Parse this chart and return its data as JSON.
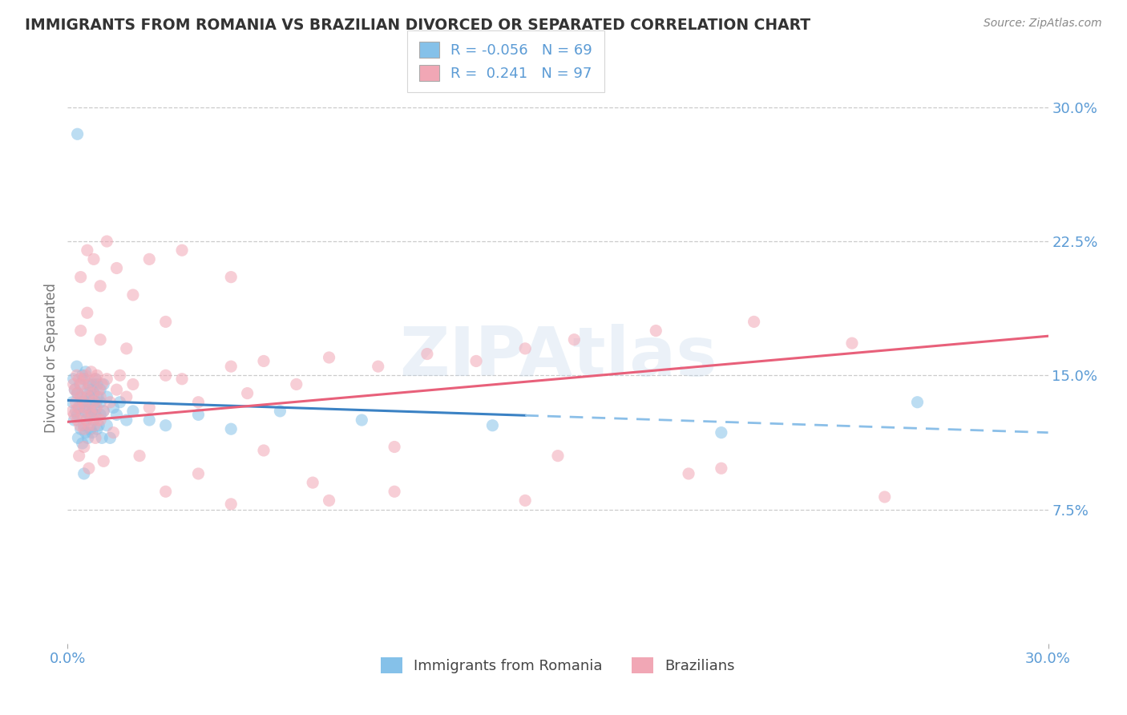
{
  "title": "IMMIGRANTS FROM ROMANIA VS BRAZILIAN DIVORCED OR SEPARATED CORRELATION CHART",
  "source": "Source: ZipAtlas.com",
  "ylabel": "Divorced or Separated",
  "xlim": [
    0.0,
    30.0
  ],
  "ylim": [
    0.0,
    32.0
  ],
  "yticks": [
    7.5,
    15.0,
    22.5,
    30.0
  ],
  "ytick_labels": [
    "7.5%",
    "15.0%",
    "22.5%",
    "30.0%"
  ],
  "xticks": [
    0.0,
    30.0
  ],
  "xtick_labels": [
    "0.0%",
    "30.0%"
  ],
  "grid_color": "#cccccc",
  "background_color": "#ffffff",
  "blue_color": "#85C1E9",
  "pink_color": "#F1A7B5",
  "blue_line_solid_color": "#3B82C4",
  "blue_line_dash_color": "#8BBFE8",
  "pink_line_color": "#E8607A",
  "R_blue": -0.056,
  "N_blue": 69,
  "R_pink": 0.241,
  "N_pink": 97,
  "legend_label_blue": "Immigrants from Romania",
  "legend_label_pink": "Brazilians",
  "watermark": "ZIPAtlas",
  "title_color": "#333333",
  "axis_label_color": "#5B9BD5",
  "blue_line_start_y": 13.6,
  "blue_line_end_y": 11.8,
  "pink_line_start_y": 12.4,
  "pink_line_end_y": 17.2,
  "blue_solid_x_end": 14.0,
  "blue_scatter_x": [
    0.15,
    0.18,
    0.2,
    0.22,
    0.25,
    0.28,
    0.3,
    0.3,
    0.32,
    0.35,
    0.38,
    0.4,
    0.42,
    0.45,
    0.45,
    0.48,
    0.5,
    0.5,
    0.52,
    0.55,
    0.55,
    0.58,
    0.6,
    0.6,
    0.62,
    0.65,
    0.65,
    0.68,
    0.7,
    0.7,
    0.72,
    0.75,
    0.75,
    0.78,
    0.8,
    0.8,
    0.82,
    0.85,
    0.85,
    0.88,
    0.9,
    0.9,
    0.92,
    0.95,
    1.0,
    1.0,
    1.0,
    1.05,
    1.1,
    1.1,
    1.2,
    1.2,
    1.3,
    1.4,
    1.5,
    1.6,
    1.8,
    2.0,
    2.5,
    3.0,
    4.0,
    5.0,
    6.5,
    9.0,
    13.0,
    20.0,
    26.0,
    0.3,
    0.5
  ],
  "blue_scatter_y": [
    13.5,
    14.8,
    12.5,
    14.2,
    13.0,
    15.5,
    14.0,
    12.8,
    11.5,
    13.2,
    14.5,
    12.0,
    13.8,
    11.2,
    15.0,
    13.5,
    12.2,
    14.8,
    13.0,
    11.8,
    15.2,
    12.5,
    14.0,
    13.2,
    11.5,
    14.5,
    12.8,
    13.5,
    12.0,
    14.2,
    13.8,
    11.8,
    13.0,
    14.5,
    12.5,
    14.0,
    13.2,
    12.8,
    14.8,
    13.5,
    12.0,
    14.5,
    13.8,
    12.2,
    13.5,
    12.8,
    14.2,
    11.5,
    13.0,
    14.5,
    12.2,
    13.8,
    11.5,
    13.2,
    12.8,
    13.5,
    12.5,
    13.0,
    12.5,
    12.2,
    12.8,
    12.0,
    13.0,
    12.5,
    12.2,
    11.8,
    13.5,
    28.5,
    9.5
  ],
  "pink_scatter_x": [
    0.15,
    0.18,
    0.2,
    0.22,
    0.25,
    0.28,
    0.3,
    0.3,
    0.32,
    0.35,
    0.38,
    0.4,
    0.42,
    0.45,
    0.48,
    0.5,
    0.5,
    0.52,
    0.55,
    0.58,
    0.6,
    0.62,
    0.65,
    0.68,
    0.7,
    0.72,
    0.75,
    0.78,
    0.8,
    0.82,
    0.85,
    0.88,
    0.9,
    0.92,
    0.95,
    1.0,
    1.0,
    1.05,
    1.1,
    1.2,
    1.3,
    1.5,
    1.6,
    1.8,
    2.0,
    2.5,
    3.0,
    3.5,
    4.0,
    5.0,
    5.5,
    6.0,
    7.0,
    8.0,
    9.5,
    11.0,
    12.5,
    14.0,
    15.5,
    18.0,
    21.0,
    24.0,
    0.4,
    0.6,
    0.8,
    1.0,
    1.2,
    1.5,
    2.0,
    2.5,
    3.5,
    5.0,
    8.0,
    3.0,
    5.0,
    7.5,
    10.0,
    14.0,
    19.0,
    25.0,
    0.35,
    0.5,
    0.65,
    0.85,
    1.1,
    1.4,
    2.2,
    4.0,
    6.0,
    10.0,
    15.0,
    20.0,
    0.4,
    0.6,
    1.0,
    1.8,
    3.0
  ],
  "pink_scatter_y": [
    13.0,
    14.5,
    12.8,
    14.2,
    13.5,
    15.0,
    12.5,
    14.0,
    13.2,
    14.8,
    12.2,
    13.8,
    14.5,
    12.8,
    13.5,
    12.0,
    14.8,
    13.2,
    15.0,
    12.5,
    14.2,
    13.8,
    12.2,
    14.5,
    13.0,
    15.2,
    12.8,
    14.0,
    13.5,
    12.2,
    14.8,
    13.2,
    15.0,
    12.5,
    14.2,
    13.8,
    12.5,
    14.5,
    13.0,
    14.8,
    13.5,
    14.2,
    15.0,
    13.8,
    14.5,
    13.2,
    15.0,
    14.8,
    13.5,
    15.5,
    14.0,
    15.8,
    14.5,
    16.0,
    15.5,
    16.2,
    15.8,
    16.5,
    17.0,
    17.5,
    18.0,
    16.8,
    20.5,
    22.0,
    21.5,
    20.0,
    22.5,
    21.0,
    19.5,
    21.5,
    22.0,
    20.5,
    8.0,
    8.5,
    7.8,
    9.0,
    8.5,
    8.0,
    9.5,
    8.2,
    10.5,
    11.0,
    9.8,
    11.5,
    10.2,
    11.8,
    10.5,
    9.5,
    10.8,
    11.0,
    10.5,
    9.8,
    17.5,
    18.5,
    17.0,
    16.5,
    18.0
  ]
}
